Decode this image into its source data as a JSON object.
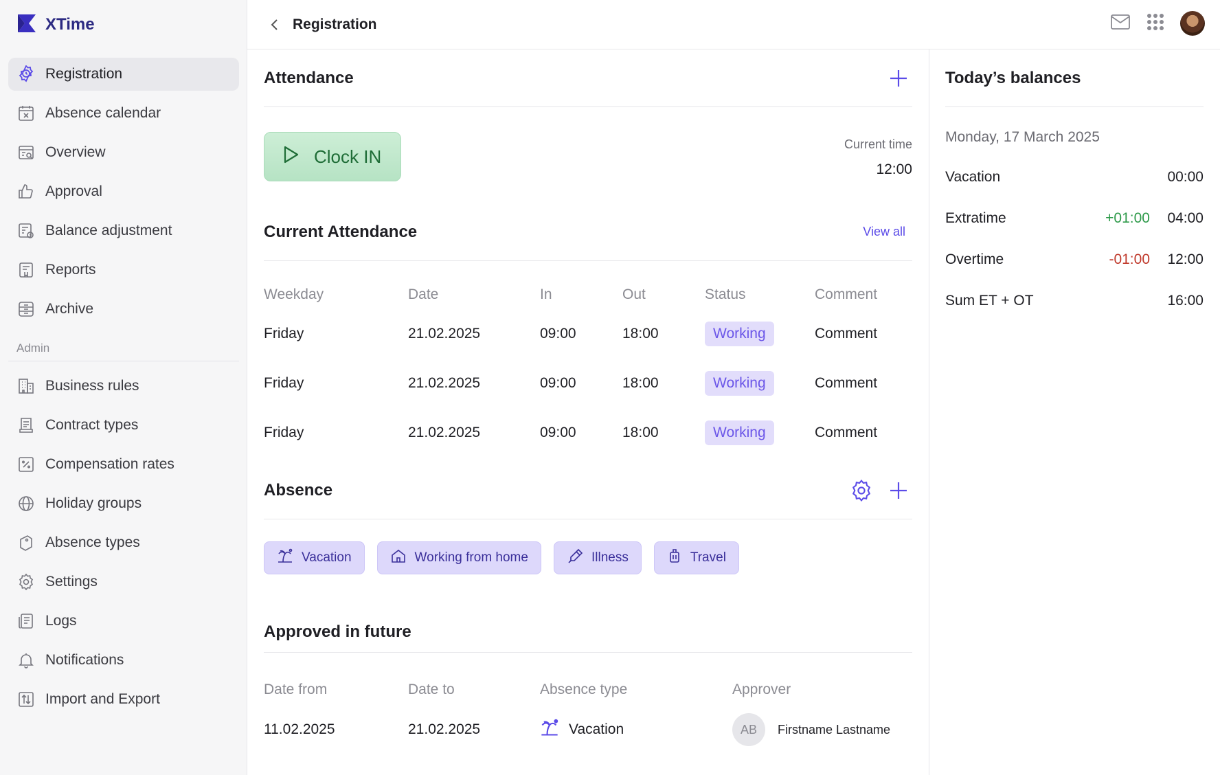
{
  "app": {
    "name": "XTime"
  },
  "sidebar": {
    "items": [
      {
        "label": "Registration",
        "icon": "clock-gear-icon"
      },
      {
        "label": "Absence calendar",
        "icon": "calendar-x-icon"
      },
      {
        "label": "Overview",
        "icon": "calendar-search-icon"
      },
      {
        "label": "Approval",
        "icon": "thumbs-up-icon"
      },
      {
        "label": "Balance adjustment",
        "icon": "calendar-clock-icon"
      },
      {
        "label": "Reports",
        "icon": "report-icon"
      },
      {
        "label": "Archive",
        "icon": "archive-icon"
      }
    ],
    "admin_label": "Admin",
    "admin_items": [
      {
        "label": "Business rules",
        "icon": "building-icon"
      },
      {
        "label": "Contract types",
        "icon": "contract-icon"
      },
      {
        "label": "Compensation rates",
        "icon": "percent-icon"
      },
      {
        "label": "Holiday groups",
        "icon": "globe-icon"
      },
      {
        "label": "Absence types",
        "icon": "tag-icon"
      },
      {
        "label": "Settings",
        "icon": "gear-icon"
      },
      {
        "label": "Logs",
        "icon": "logs-icon"
      },
      {
        "label": "Notifications",
        "icon": "bell-icon"
      },
      {
        "label": "Import and Export",
        "icon": "import-export-icon"
      }
    ]
  },
  "topbar": {
    "title": "Registration"
  },
  "attendance": {
    "title": "Attendance",
    "clock_label": "Clock IN",
    "current_time_label": "Current time",
    "current_time": "12:00"
  },
  "current_attendance": {
    "title": "Current Attendance",
    "view_all": "View all",
    "columns": [
      "Weekday",
      "Date",
      "In",
      "Out",
      "Status",
      "Comment"
    ],
    "rows": [
      {
        "weekday": "Friday",
        "date": "21.02.2025",
        "in": "09:00",
        "out": "18:00",
        "status": "Working",
        "comment": "Comment"
      },
      {
        "weekday": "Friday",
        "date": "21.02.2025",
        "in": "09:00",
        "out": "18:00",
        "status": "Working",
        "comment": "Comment"
      },
      {
        "weekday": "Friday",
        "date": "21.02.2025",
        "in": "09:00",
        "out": "18:00",
        "status": "Working",
        "comment": "Comment"
      }
    ]
  },
  "absence": {
    "title": "Absence",
    "chips": [
      "Vacation",
      "Working from home",
      "Illness",
      "Travel"
    ]
  },
  "approved_future": {
    "title": "Approved in future",
    "columns": [
      "Date from",
      "Date to",
      "Absence type",
      "Approver"
    ],
    "rows": [
      {
        "from": "11.02.2025",
        "to": "21.02.2025",
        "type": "Vacation",
        "initials": "AB",
        "approver": "Firstname Lastname"
      }
    ]
  },
  "balances": {
    "title": "Today’s balances",
    "date": "Monday, 17 March 2025",
    "rows": [
      {
        "label": "Vacation",
        "delta": "",
        "value": "00:00"
      },
      {
        "label": "Extratime",
        "delta": "+01:00",
        "value": "04:00"
      },
      {
        "label": "Overtime",
        "delta": "-01:00",
        "value": "12:00"
      },
      {
        "label": "Sum ET + OT",
        "delta": "",
        "value": "16:00"
      }
    ]
  },
  "colors": {
    "accent": "#5b4be8",
    "positive": "#2e9a4a",
    "negative": "#c0392b",
    "clock_green": "#b6e3c4"
  }
}
